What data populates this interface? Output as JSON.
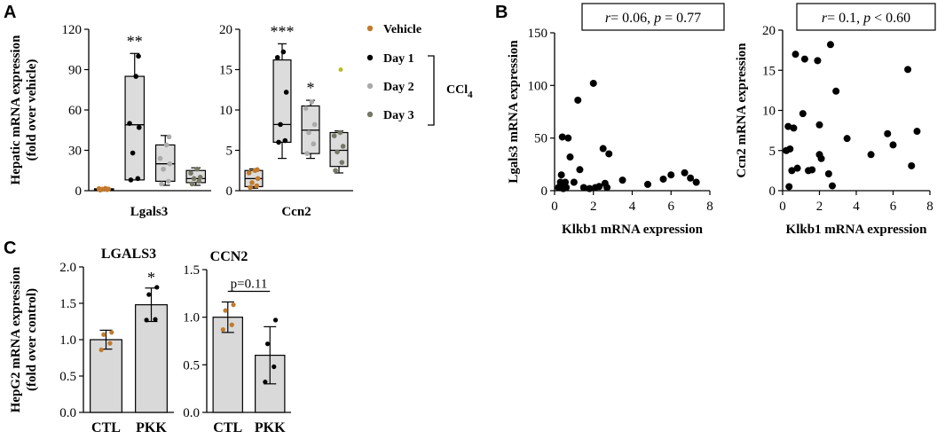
{
  "panel_labels": {
    "a": "A",
    "b": "B",
    "c": "C"
  },
  "legend": {
    "items": [
      {
        "label": "Vehicle",
        "color": "#c27a2c"
      },
      {
        "label": "Day 1",
        "color": "#000000"
      },
      {
        "label": "Day 2",
        "color": "#aaaaaa"
      },
      {
        "label": "Day 3",
        "color": "#777766"
      }
    ],
    "bracket_label": "CCl",
    "bracket_sub": "4"
  },
  "chart_data": [
    {
      "type": "box",
      "id": "A-left",
      "title": "",
      "xlabel": "Lgals3",
      "ylabel": [
        "Hepatic mRNA expression",
        "(fold over vehicle)"
      ],
      "ylim": [
        0,
        120
      ],
      "yticks": [
        "0",
        "30",
        "60",
        "90",
        "120"
      ],
      "categories": [
        "Vehicle",
        "Day 1",
        "Day 2",
        "Day 3"
      ],
      "boxes": [
        {
          "min": 0.3,
          "q1": 0.6,
          "median": 1.0,
          "q3": 1.4,
          "max": 1.8,
          "points": [
            0.5,
            0.8,
            1.0,
            1.2,
            1.5,
            1.7
          ]
        },
        {
          "min": 8,
          "q1": 8,
          "median": 49,
          "q3": 85,
          "max": 102,
          "points": [
            8,
            9,
            28,
            47,
            50,
            85,
            100
          ]
        },
        {
          "min": 4,
          "q1": 7,
          "median": 20,
          "q3": 34,
          "max": 41,
          "points": [
            5,
            7,
            16,
            20,
            24,
            34,
            40
          ]
        },
        {
          "min": 4,
          "q1": 6,
          "median": 9,
          "q3": 15,
          "max": 17,
          "points": [
            5,
            7,
            9,
            10,
            13,
            16
          ]
        }
      ],
      "annotations": [
        "",
        "**",
        "",
        ""
      ]
    },
    {
      "type": "box",
      "id": "A-right",
      "xlabel": "Ccn2",
      "ylim": [
        0,
        20
      ],
      "yticks": [
        "0",
        "5",
        "10",
        "15",
        "20"
      ],
      "categories": [
        "Vehicle",
        "Day 1",
        "Day 2",
        "Day 3"
      ],
      "boxes": [
        {
          "min": 0.3,
          "q1": 0.5,
          "median": 1.5,
          "q3": 2.5,
          "max": 2.7,
          "points": [
            0.4,
            0.6,
            1.0,
            1.5,
            2.2,
            2.5,
            2.6
          ]
        },
        {
          "min": 4,
          "q1": 6,
          "median": 8.2,
          "q3": 16.2,
          "max": 18.2,
          "points": [
            6,
            6.2,
            8.2,
            12.2,
            16.5,
            17.2
          ]
        },
        {
          "min": 4,
          "q1": 4.6,
          "median": 7.5,
          "q3": 10.5,
          "max": 11.2,
          "points": [
            4.6,
            5.8,
            7.2,
            8.2,
            10.2,
            11.0
          ]
        },
        {
          "min": 2.2,
          "q1": 3,
          "median": 5,
          "q3": 7.2,
          "max": 7.4,
          "points": [
            2.5,
            3.5,
            4.8,
            5.5,
            6.8,
            7.2
          ],
          "outliers": [
            15
          ]
        }
      ],
      "annotations": [
        "",
        "***",
        "*",
        ""
      ]
    },
    {
      "type": "scatter",
      "id": "B-left",
      "xlabel": "Klkb1 mRNA expression",
      "ylabel": "Lgals3 mRNA expression",
      "xlim": [
        0,
        8
      ],
      "ylim": [
        0,
        150
      ],
      "xticks": [
        "0",
        "2",
        "4",
        "6",
        "8"
      ],
      "yticks": [
        "0",
        "50",
        "100",
        "150"
      ],
      "annotation": {
        "prefix": "r",
        "mid": "= 0.06, ",
        "p": "p",
        "suffix": " = 0.77"
      },
      "x": [
        0.2,
        0.3,
        0.35,
        0.4,
        0.45,
        0.5,
        0.55,
        0.6,
        0.7,
        0.8,
        1.0,
        1.2,
        1.3,
        1.5,
        1.8,
        2.0,
        2.1,
        2.3,
        2.5,
        2.6,
        2.7,
        2.8,
        3.5,
        4.8,
        5.6,
        6.0,
        6.7,
        7.0,
        7.3
      ],
      "y": [
        3,
        8,
        15,
        51,
        2,
        4,
        8,
        3,
        50,
        32,
        8,
        86,
        20,
        3,
        2,
        102,
        3,
        4,
        40,
        7,
        3,
        35,
        10,
        6,
        11,
        15,
        17,
        12,
        8
      ]
    },
    {
      "type": "scatter",
      "id": "B-right",
      "xlabel": "Klkb1 mRNA expression",
      "ylabel": "Ccn2 mRNA expression",
      "xlim": [
        0,
        8
      ],
      "ylim": [
        0,
        20
      ],
      "xticks": [
        "0",
        "2",
        "4",
        "6",
        "8"
      ],
      "yticks": [
        "0",
        "5",
        "10",
        "15",
        "20"
      ],
      "annotation": {
        "prefix": "r",
        "mid": "= 0.1, ",
        "p": "p",
        "suffix": " < 0.60"
      },
      "x": [
        0.2,
        0.3,
        0.35,
        0.4,
        0.5,
        0.6,
        0.7,
        0.8,
        1.1,
        1.2,
        1.4,
        1.6,
        1.9,
        2.0,
        2.0,
        2.1,
        2.5,
        2.6,
        2.7,
        2.9,
        3.5,
        4.8,
        5.7,
        6.0,
        6.8,
        7.0,
        7.3
      ],
      "y": [
        5,
        8,
        0.5,
        5.2,
        2.5,
        7.8,
        17,
        2.8,
        9.6,
        16.4,
        2.5,
        2.6,
        16.2,
        8.2,
        4.5,
        4.0,
        2.1,
        18.2,
        0.6,
        12.4,
        6.5,
        4.5,
        7.1,
        5.7,
        15.1,
        3.1,
        7.4
      ]
    },
    {
      "type": "bar",
      "id": "C-left",
      "title": "LGALS3",
      "ylabel": [
        "HepG2 mRNA  expression",
        "(fold over control)"
      ],
      "ylim": [
        0,
        2.0
      ],
      "yticks": [
        "0.0",
        "0.5",
        "1.0",
        "1.5",
        "2.0"
      ],
      "categories": [
        "CTL",
        "PKK"
      ],
      "values": [
        1.0,
        1.48
      ],
      "errors": [
        0.13,
        0.23
      ],
      "points": [
        [
          0.86,
          0.95,
          1.07,
          1.1
        ],
        [
          1.27,
          1.28,
          1.62,
          1.72
        ]
      ],
      "point_colors": [
        "#c27a2c",
        "#000000"
      ],
      "annotations": [
        "",
        "*"
      ]
    },
    {
      "type": "bar",
      "id": "C-right",
      "title": "CCN2",
      "ylim": [
        0,
        1.5
      ],
      "yticks": [
        "0.0",
        "0.5",
        "1.0",
        "1.5"
      ],
      "categories": [
        "CTL",
        "PKK"
      ],
      "values": [
        1.0,
        0.6
      ],
      "errors": [
        0.16,
        0.3
      ],
      "points": [
        [
          0.87,
          0.92,
          1.07,
          1.13
        ],
        [
          0.32,
          0.48,
          0.72,
          0.97
        ]
      ],
      "point_colors": [
        "#c27a2c",
        "#000000"
      ],
      "sig_bracket": "p=0.11"
    }
  ]
}
